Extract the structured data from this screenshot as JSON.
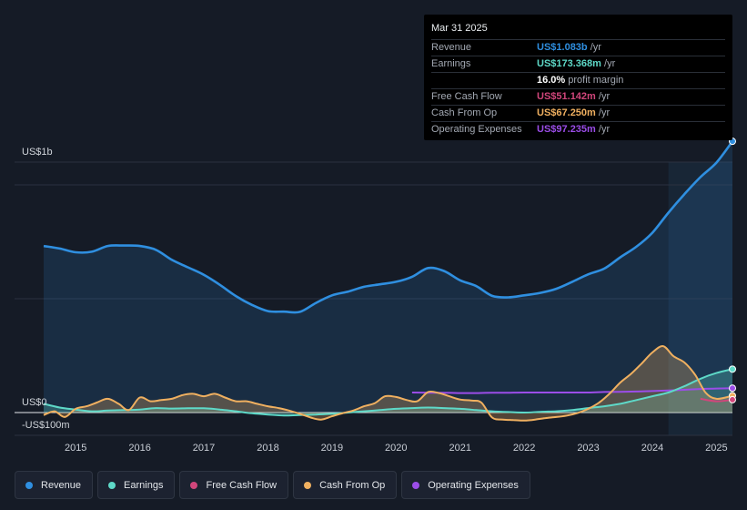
{
  "chart_data": {
    "type": "area",
    "y_axis_labels": {
      "top": "US$1b",
      "zero": "US$0",
      "bottom": "-US$100m"
    },
    "ylim": [
      -100,
      1100
    ],
    "xlim": [
      2014.5,
      2025.25
    ],
    "x_tick_labels": [
      "2015",
      "2016",
      "2017",
      "2018",
      "2019",
      "2020",
      "2021",
      "2022",
      "2023",
      "2024",
      "2025"
    ],
    "highlight_from": 2024.25,
    "series": [
      {
        "name": "Revenue",
        "color": "#2f8fe0",
        "fill": true,
        "x": [
          2014.5,
          2014.75,
          2015.0,
          2015.25,
          2015.5,
          2015.75,
          2016.0,
          2016.25,
          2016.5,
          2016.75,
          2017.0,
          2017.25,
          2017.5,
          2017.75,
          2018.0,
          2018.25,
          2018.5,
          2018.75,
          2019.0,
          2019.25,
          2019.5,
          2019.75,
          2020.0,
          2020.25,
          2020.5,
          2020.75,
          2021.0,
          2021.25,
          2021.5,
          2021.75,
          2022.0,
          2022.25,
          2022.5,
          2022.75,
          2023.0,
          2023.25,
          2023.5,
          2023.75,
          2024.0,
          2024.25,
          2024.5,
          2024.75,
          2025.0,
          2025.25
        ],
        "values": [
          665,
          655,
          640,
          642,
          665,
          667,
          665,
          650,
          610,
          580,
          550,
          510,
          465,
          430,
          405,
          403,
          402,
          438,
          468,
          483,
          502,
          512,
          522,
          542,
          577,
          565,
          528,
          505,
          466,
          460,
          468,
          478,
          494,
          522,
          552,
          575,
          620,
          662,
          718,
          798,
          872,
          940,
          998,
          1083
        ]
      },
      {
        "name": "Earnings",
        "color": "#5ed9c8",
        "fill": true,
        "x": [
          2014.5,
          2014.75,
          2015.0,
          2015.25,
          2015.5,
          2015.75,
          2016.0,
          2016.25,
          2016.5,
          2016.75,
          2017.0,
          2017.25,
          2017.5,
          2017.75,
          2018.0,
          2018.25,
          2018.5,
          2018.75,
          2019.0,
          2019.25,
          2019.5,
          2019.75,
          2020.0,
          2020.25,
          2020.5,
          2020.75,
          2021.0,
          2021.25,
          2021.5,
          2021.75,
          2022.0,
          2022.25,
          2022.5,
          2022.75,
          2023.0,
          2023.25,
          2023.5,
          2023.75,
          2024.0,
          2024.25,
          2024.5,
          2024.75,
          2025.0,
          2025.25
        ],
        "values": [
          35,
          20,
          12,
          5,
          8,
          10,
          12,
          18,
          16,
          17,
          17,
          12,
          5,
          -3,
          -8,
          -12,
          -10,
          -8,
          -5,
          0,
          5,
          10,
          15,
          18,
          20,
          18,
          15,
          10,
          5,
          2,
          0,
          3,
          5,
          10,
          18,
          25,
          35,
          50,
          65,
          80,
          105,
          135,
          158,
          173.368
        ]
      },
      {
        "name": "Free Cash Flow",
        "color": "#d1467b",
        "fill": false,
        "x": [
          2024.75,
          2025.0,
          2025.25
        ],
        "values": [
          55,
          45,
          51.142
        ]
      },
      {
        "name": "Cash From Op",
        "color": "#f0b060",
        "fill": true,
        "x": [
          2014.5,
          2014.67,
          2014.83,
          2015.0,
          2015.17,
          2015.33,
          2015.5,
          2015.67,
          2015.83,
          2016.0,
          2016.17,
          2016.33,
          2016.5,
          2016.67,
          2016.83,
          2017.0,
          2017.17,
          2017.33,
          2017.5,
          2017.67,
          2017.83,
          2018.0,
          2018.17,
          2018.33,
          2018.5,
          2018.67,
          2018.83,
          2019.0,
          2019.17,
          2019.33,
          2019.5,
          2019.67,
          2019.83,
          2020.0,
          2020.17,
          2020.33,
          2020.5,
          2020.67,
          2020.83,
          2021.0,
          2021.17,
          2021.33,
          2021.5,
          2021.67,
          2021.83,
          2022.0,
          2022.17,
          2022.33,
          2022.5,
          2022.67,
          2022.83,
          2023.0,
          2023.17,
          2023.33,
          2023.5,
          2023.67,
          2023.83,
          2024.0,
          2024.17,
          2024.33,
          2024.5,
          2024.67,
          2024.83,
          2025.0,
          2025.25
        ],
        "values": [
          -10,
          5,
          -18,
          15,
          25,
          40,
          55,
          35,
          10,
          60,
          45,
          50,
          55,
          70,
          75,
          65,
          75,
          60,
          45,
          45,
          35,
          25,
          18,
          8,
          -5,
          -20,
          -28,
          -15,
          -2,
          8,
          25,
          38,
          65,
          62,
          50,
          45,
          82,
          78,
          65,
          52,
          48,
          40,
          -20,
          -28,
          -30,
          -32,
          -28,
          -22,
          -18,
          -12,
          -2,
          15,
          40,
          75,
          120,
          155,
          195,
          240,
          265,
          225,
          200,
          150,
          80,
          55,
          67.25
        ]
      },
      {
        "name": "Operating Expenses",
        "color": "#9b4de8",
        "fill": false,
        "x": [
          2020.25,
          2020.5,
          2020.75,
          2021.0,
          2021.25,
          2021.5,
          2021.75,
          2022.0,
          2022.25,
          2022.5,
          2022.75,
          2023.0,
          2023.25,
          2023.5,
          2023.75,
          2024.0,
          2024.25,
          2024.5,
          2024.75,
          2025.0,
          2025.25
        ],
        "values": [
          80,
          79,
          79,
          78,
          78,
          79,
          79,
          80,
          80,
          80,
          80,
          80,
          82,
          83,
          84,
          86,
          88,
          91,
          94,
          96,
          97.235
        ]
      }
    ]
  },
  "tooltip": {
    "date": "Mar 31 2025",
    "rows": [
      {
        "label": "Revenue",
        "value": "US$1.083b",
        "unit": " /yr",
        "color": "#2f8fe0"
      },
      {
        "label": "Earnings",
        "value": "US$173.368m",
        "unit": " /yr",
        "color": "#5ed9c8"
      },
      {
        "label": "",
        "value": "16.0%",
        "unit": " profit margin",
        "color": "#ffffff"
      },
      {
        "label": "Free Cash Flow",
        "value": "US$51.142m",
        "unit": " /yr",
        "color": "#d1467b"
      },
      {
        "label": "Cash From Op",
        "value": "US$67.250m",
        "unit": " /yr",
        "color": "#f0b060"
      },
      {
        "label": "Operating Expenses",
        "value": "US$97.235m",
        "unit": " /yr",
        "color": "#9b4de8"
      }
    ]
  },
  "legend": [
    {
      "label": "Revenue",
      "color": "#2f8fe0"
    },
    {
      "label": "Earnings",
      "color": "#5ed9c8"
    },
    {
      "label": "Free Cash Flow",
      "color": "#d1467b"
    },
    {
      "label": "Cash From Op",
      "color": "#f0b060"
    },
    {
      "label": "Operating Expenses",
      "color": "#9b4de8"
    }
  ]
}
